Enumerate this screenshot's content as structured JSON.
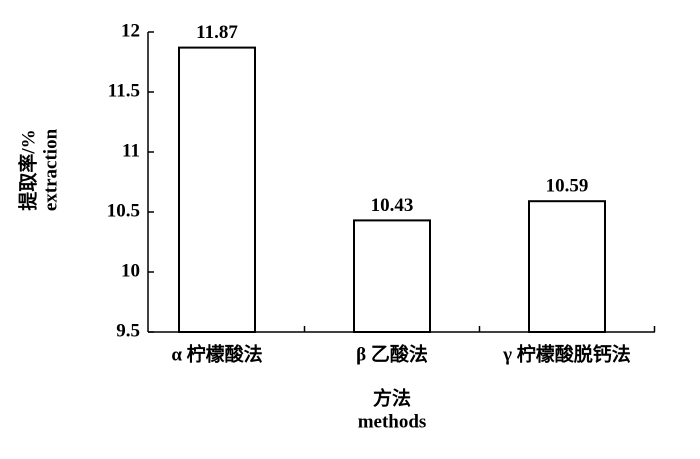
{
  "chart_data": {
    "type": "bar",
    "y_label_lines": [
      "提取率/%",
      "extraction"
    ],
    "x_label_lines": [
      "方法",
      "methods"
    ],
    "categories": [
      "α 柠檬酸法",
      "β 乙酸法",
      "γ 柠檬酸脱钙法"
    ],
    "values": [
      11.87,
      10.43,
      10.59
    ],
    "color": "#ffffff",
    "ylim": [
      9.5,
      12
    ],
    "yticks": [
      9.5,
      10,
      10.5,
      11,
      11.5,
      12
    ],
    "grid": false
  }
}
